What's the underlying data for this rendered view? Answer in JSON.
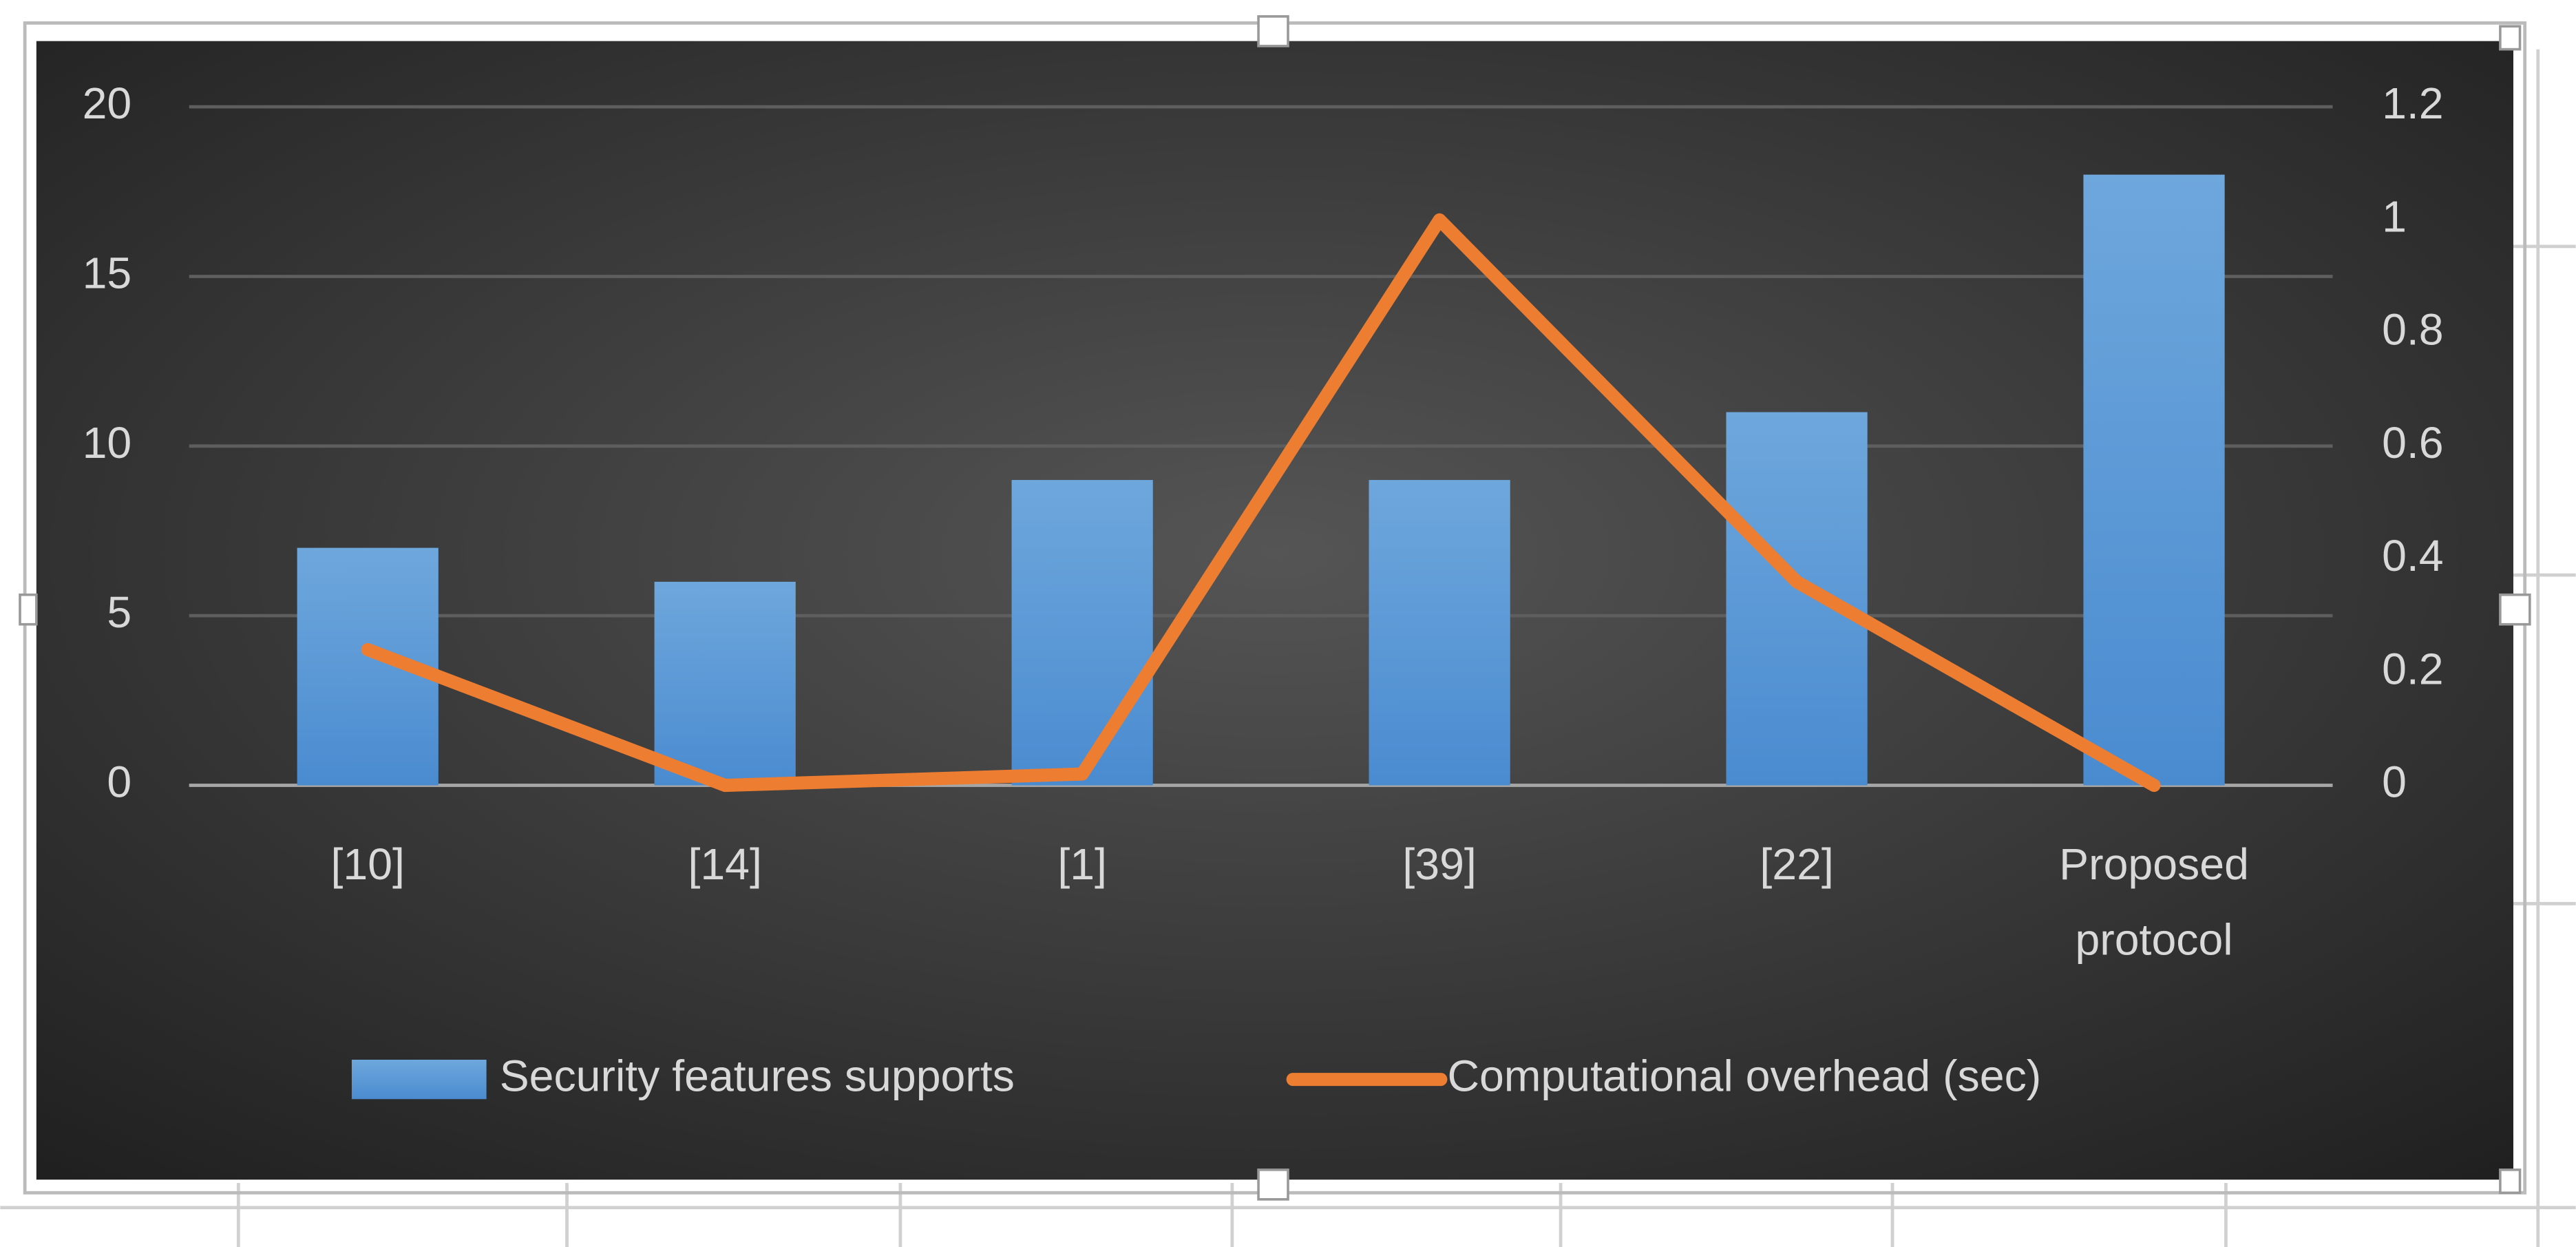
{
  "chart_data": {
    "type": "bar_line",
    "categories": [
      "[10]",
      "[14]",
      "[1]",
      "[39]",
      "[22]",
      "Proposed protocol"
    ],
    "series": [
      {
        "name": "Security features supports",
        "type": "bar",
        "color": "#5b9bd5",
        "values": [
          7,
          6,
          9,
          9,
          11,
          18
        ]
      },
      {
        "name": "Computational overhead (sec)",
        "type": "line",
        "axis": "y2",
        "color": "#ed7d31",
        "values": [
          0.24,
          0,
          0.02,
          1,
          0.36,
          0
        ]
      }
    ],
    "ylim": [
      0,
      20
    ],
    "yticks": [
      0,
      5,
      10,
      15,
      20
    ],
    "y2lim": [
      0,
      1.2
    ],
    "y2ticks": [
      0,
      0.2,
      0.4,
      0.6,
      0.8,
      1,
      1.2
    ],
    "grid": true,
    "legend": "bottom"
  }
}
